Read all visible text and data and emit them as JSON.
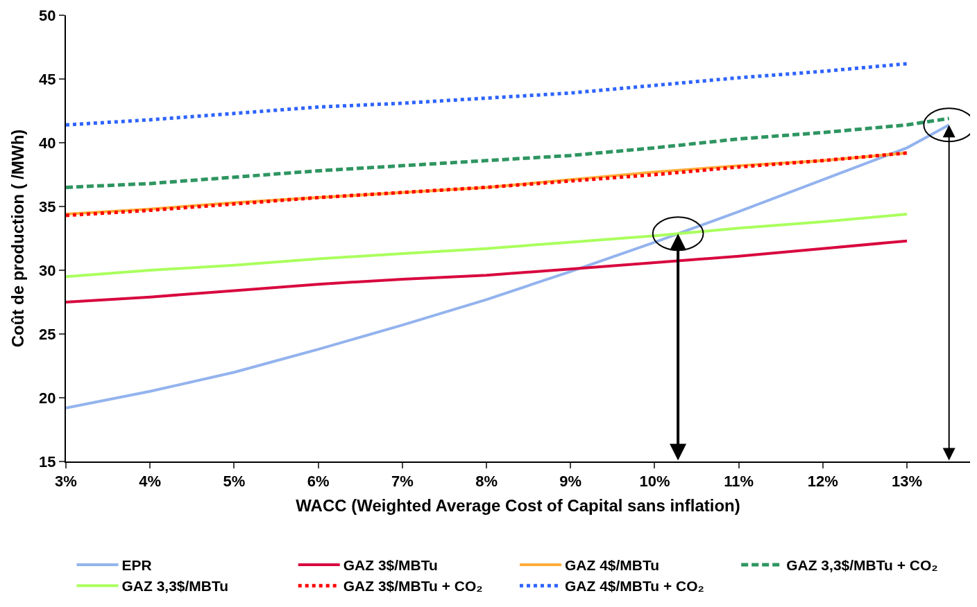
{
  "chart_data": {
    "type": "line",
    "xlabel": "WACC (Weighted Average Cost of Capital sans inflation)",
    "ylabel": "Coût de production ( /MWh)",
    "x": [
      3,
      4,
      5,
      6,
      7,
      8,
      9,
      10,
      11,
      12,
      13
    ],
    "series": [
      {
        "name": "EPR",
        "color": "#93b3ee",
        "line_style": "solid",
        "x": [
          3,
          4,
          5,
          6,
          7,
          8,
          9,
          10,
          11,
          12,
          13,
          13.5
        ],
        "values": [
          19.2,
          20.5,
          22.0,
          23.8,
          25.7,
          27.7,
          29.9,
          32.2,
          34.6,
          37.1,
          39.6,
          41.4
        ]
      },
      {
        "name": "GAZ 3$/MBTu",
        "color": "#d8073e",
        "line_style": "solid",
        "values": [
          27.5,
          27.9,
          28.4,
          28.9,
          29.3,
          29.6,
          30.1,
          30.6,
          31.1,
          31.7,
          32.3
        ]
      },
      {
        "name": "GAZ 4$/MBTu",
        "color": "#ffad3b",
        "line_style": "solid",
        "values": [
          34.4,
          34.8,
          35.3,
          35.7,
          36.1,
          36.5,
          37.1,
          37.7,
          38.2,
          38.6,
          39.2
        ]
      },
      {
        "name": "GAZ 3,3$/MBTu + CO₂",
        "color": "#2e9561",
        "line_style": "dashed",
        "x": [
          3,
          4,
          5,
          6,
          7,
          8,
          9,
          10,
          11,
          12,
          13,
          13.5
        ],
        "values": [
          36.5,
          36.8,
          37.3,
          37.8,
          38.2,
          38.6,
          39.0,
          39.6,
          40.3,
          40.8,
          41.4,
          41.9
        ]
      },
      {
        "name": "GAZ 3,3$/MBTu",
        "color": "#aaff5e",
        "line_style": "solid",
        "values": [
          29.5,
          30.0,
          30.4,
          30.9,
          31.3,
          31.7,
          32.2,
          32.7,
          33.3,
          33.8,
          34.4
        ]
      },
      {
        "name": "GAZ 3$/MBTu + CO₂",
        "color": "#ff0000",
        "line_style": "dotted",
        "values": [
          34.3,
          34.7,
          35.2,
          35.7,
          36.1,
          36.5,
          37.0,
          37.5,
          38.1,
          38.6,
          39.2
        ]
      },
      {
        "name": "GAZ 4$/MBTu + CO₂",
        "color": "#2e64fe",
        "line_style": "dotted",
        "values": [
          41.4,
          41.8,
          42.3,
          42.8,
          43.1,
          43.5,
          43.9,
          44.5,
          45.1,
          45.6,
          46.2
        ]
      }
    ],
    "xlim": [
      3,
      13.75
    ],
    "xticks": [
      {
        "value": 3,
        "label": "3%"
      },
      {
        "value": 4,
        "label": "4%"
      },
      {
        "value": 5,
        "label": "5%"
      },
      {
        "value": 6,
        "label": "6%"
      },
      {
        "value": 7,
        "label": "7%"
      },
      {
        "value": 8,
        "label": "8%"
      },
      {
        "value": 9,
        "label": "9%"
      },
      {
        "value": 10,
        "label": "10%"
      },
      {
        "value": 11,
        "label": "11%"
      },
      {
        "value": 12,
        "label": "12%"
      },
      {
        "value": 13,
        "label": "13%"
      }
    ],
    "ylim": [
      15,
      50
    ],
    "yticks": [
      15,
      20,
      25,
      30,
      35,
      40,
      45,
      50
    ],
    "legend": "bottom",
    "marker": "none"
  }
}
